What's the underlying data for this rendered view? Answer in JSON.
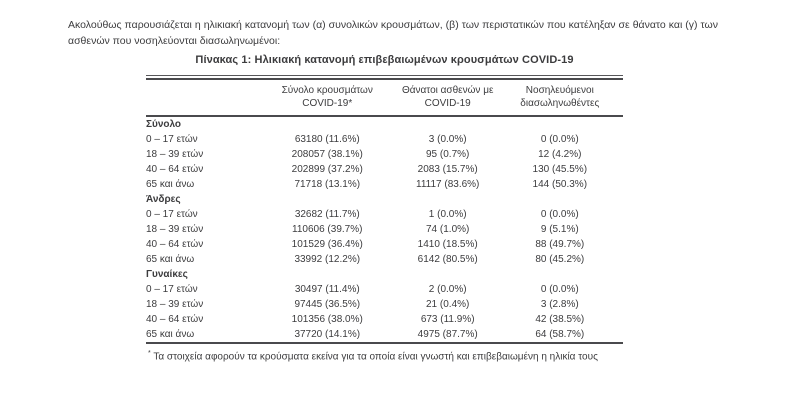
{
  "intro_text": "Ακολούθως παρουσιάζεται η ηλικιακή κατανομή των (α) συνολικών κρουσμάτων, (β) των περιστατικών που κατέληξαν σε θάνατο και (γ) των ασθενών που νοσηλεύονται διασωληνωμένοι:",
  "table": {
    "title": "Πίνακας 1: Ηλικιακή κατανομή επιβεβαιωμένων κρουσμάτων COVID-19",
    "columns": [
      {
        "line1": "Σύνολο κρουσμάτων",
        "line2": "COVID-19*"
      },
      {
        "line1": "Θάνατοι ασθενών με",
        "line2": "COVID-19"
      },
      {
        "line1": "Νοσηλευόμενοι",
        "line2": "διασωληνωθέντες"
      }
    ],
    "sections": [
      {
        "label": "Σύνολο",
        "rows": [
          {
            "label": "0 – 17 ετών",
            "values": [
              "63180 (11.6%)",
              "3 (0.0%)",
              "0 (0.0%)"
            ]
          },
          {
            "label": "18 – 39 ετών",
            "values": [
              "208057 (38.1%)",
              "95 (0.7%)",
              "12 (4.2%)"
            ]
          },
          {
            "label": "40 – 64 ετών",
            "values": [
              "202899 (37.2%)",
              "2083 (15.7%)",
              "130 (45.5%)"
            ]
          },
          {
            "label": "65 και άνω",
            "values": [
              "71718 (13.1%)",
              "11117 (83.6%)",
              "144 (50.3%)"
            ]
          }
        ]
      },
      {
        "label": "Άνδρες",
        "rows": [
          {
            "label": "0 – 17 ετών",
            "values": [
              "32682 (11.7%)",
              "1 (0.0%)",
              "0 (0.0%)"
            ]
          },
          {
            "label": "18 – 39 ετών",
            "values": [
              "110606 (39.7%)",
              "74 (1.0%)",
              "9 (5.1%)"
            ]
          },
          {
            "label": "40 – 64 ετών",
            "values": [
              "101529 (36.4%)",
              "1410 (18.5%)",
              "88 (49.7%)"
            ]
          },
          {
            "label": "65 και άνω",
            "values": [
              "33992 (12.2%)",
              "6142 (80.5%)",
              "80 (45.2%)"
            ]
          }
        ]
      },
      {
        "label": "Γυναίκες",
        "rows": [
          {
            "label": "0 – 17 ετών",
            "values": [
              "30497 (11.4%)",
              "2 (0.0%)",
              "0 (0.0%)"
            ]
          },
          {
            "label": "18 – 39 ετών",
            "values": [
              "97445 (36.5%)",
              "21 (0.4%)",
              "3 (2.8%)"
            ]
          },
          {
            "label": "40 – 64 ετών",
            "values": [
              "101356 (38.0%)",
              "673 (11.9%)",
              "42 (38.5%)"
            ]
          },
          {
            "label": "65 και άνω",
            "values": [
              "37720 (14.1%)",
              "4975 (87.7%)",
              "64 (58.7%)"
            ]
          }
        ]
      }
    ]
  },
  "footnote": {
    "marker": "*",
    "text": "Τα στοιχεία αφορούν τα κρούσματα εκείνα για τα οποία είναι γνωστή και επιβεβαιωμένη η ηλικία τους"
  },
  "colors": {
    "text": "#3c3c3e",
    "rule": "#4a4a4d",
    "background": "#ffffff"
  }
}
